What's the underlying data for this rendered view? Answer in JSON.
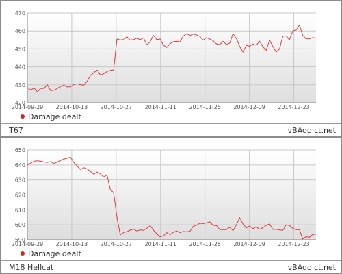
{
  "chart_data": [
    {
      "type": "line",
      "panel_label": "T67",
      "brand": "vBAddict.net",
      "legend": "Damage dealt",
      "series_color": "#e03a3a",
      "x_ticks": [
        "2014-09-29",
        "2014-10-13",
        "2014-10-27",
        "2014-11-11",
        "2014-11-25",
        "2014-12-09",
        "2014-12-23"
      ],
      "y_ticks": [
        420,
        430,
        440,
        450,
        460,
        470
      ],
      "ylim": [
        420,
        470
      ],
      "series": [
        {
          "name": "Damage dealt",
          "values": [
            428.4,
            427.1,
            428.2,
            426.0,
            428.0,
            427.9,
            430.1,
            426.7,
            427.0,
            427.9,
            429.1,
            429.8,
            428.8,
            428.9,
            430.2,
            430.6,
            430.0,
            429.8,
            431.9,
            435.2,
            436.7,
            438.2,
            435.4,
            436.2,
            437.4,
            438.0,
            438.3,
            455.5,
            455.0,
            455.2,
            456.8,
            454.9,
            455.2,
            456.0,
            455.1,
            456.2,
            452.2,
            454.0,
            457.6,
            455.2,
            455.5,
            452.1,
            450.8,
            452.9,
            454.0,
            454.2,
            453.9,
            457.2,
            458.5,
            457.5,
            458.3,
            457.8,
            456.9,
            454.9,
            456.3,
            455.5,
            454.5,
            452.8,
            452.4,
            454.2,
            452.4,
            453.3,
            458.5,
            455.8,
            451.4,
            448.2,
            452.0,
            451.5,
            452.7,
            452.0,
            454.3,
            451.2,
            449.2,
            454.9,
            451.4,
            448.2,
            449.9,
            457.1,
            457.2,
            455.1,
            460.0,
            460.5,
            463.3,
            457.6,
            455.7,
            455.6,
            456.3,
            456.0
          ]
        }
      ]
    },
    {
      "type": "line",
      "panel_label": "M18 Hellcat",
      "brand": "vBAddict.net",
      "legend": "Damage dealt",
      "series_color": "#e03a3a",
      "x_ticks": [
        "2014-09-29",
        "2014-10-13",
        "2014-10-27",
        "2014-11-11",
        "2014-11-25",
        "2014-12-09",
        "2014-12-23"
      ],
      "y_ticks": [
        590,
        600,
        610,
        620,
        630,
        640,
        650
      ],
      "ylim": [
        590,
        650
      ],
      "series": [
        {
          "name": "Damage dealt",
          "values": [
            640.0,
            641.2,
            642.5,
            642.8,
            642.5,
            642.0,
            641.7,
            642.2,
            641.0,
            642.0,
            643.0,
            644.0,
            644.5,
            645.3,
            641.7,
            639.3,
            637.0,
            638.2,
            637.4,
            635.8,
            633.9,
            635.3,
            634.1,
            632.0,
            633.4,
            623.5,
            621.5,
            605.0,
            593.3,
            594.8,
            595.4,
            596.4,
            597.1,
            595.8,
            596.6,
            596.3,
            597.6,
            599.4,
            596.4,
            594.0,
            592.0,
            592.6,
            594.8,
            593.4,
            595.0,
            595.8,
            594.8,
            595.5,
            595.3,
            595.6,
            599.0,
            599.7,
            601.0,
            600.8,
            601.2,
            602.0,
            599.6,
            599.5,
            596.8,
            596.8,
            596.8,
            598.4,
            596.1,
            600.0,
            604.8,
            600.6,
            597.9,
            599.2,
            597.4,
            598.6,
            597.0,
            598.0,
            599.6,
            600.6,
            596.9,
            597.0,
            596.6,
            596.3,
            599.9,
            599.6,
            597.6,
            596.8,
            596.8,
            590.6,
            592.0,
            591.7,
            593.5,
            593.8
          ]
        }
      ]
    }
  ]
}
